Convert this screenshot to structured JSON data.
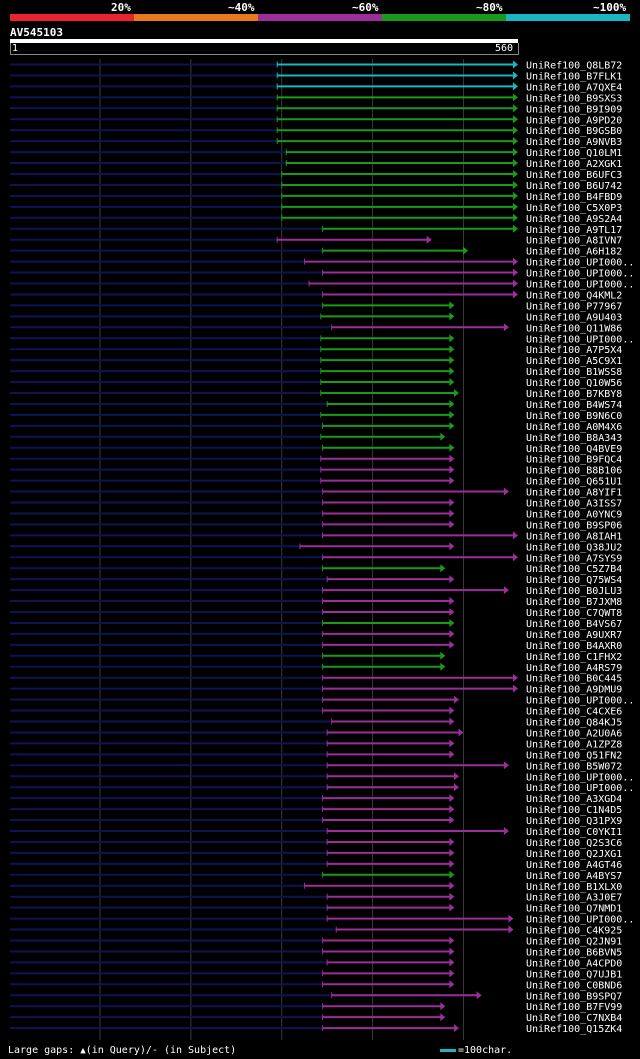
{
  "query": {
    "name": "AV545103",
    "start": "1",
    "end": "560",
    "length": 560
  },
  "legend": [
    {
      "label": "20%",
      "color": "#e8242f"
    },
    {
      "label": "~40%",
      "color": "#e9781e"
    },
    {
      "label": "~60%",
      "color": "#9b2e99"
    },
    {
      "label": "~80%",
      "color": "#1a9a1a"
    },
    {
      "label": "~100%",
      "color": "#19b5c1"
    }
  ],
  "footer": {
    "gaps_prefix": "Large gaps:",
    "gaps_text": "(in Query)/- (in Subject)",
    "scale_text": "=100char."
  },
  "chart_data": {
    "type": "bar",
    "x_range": [
      1,
      560
    ],
    "grid": true,
    "hits": [
      {
        "name": "UniRef100_Q8LB72",
        "start": 295,
        "end": 560,
        "cls": 4
      },
      {
        "name": "UniRef100_B7FLK1",
        "start": 295,
        "end": 560,
        "cls": 4
      },
      {
        "name": "UniRef100_A7QXE4",
        "start": 295,
        "end": 560,
        "cls": 4
      },
      {
        "name": "UniRef100_B9SXS3",
        "start": 295,
        "end": 560,
        "cls": 3
      },
      {
        "name": "UniRef100_B9I909",
        "start": 295,
        "end": 560,
        "cls": 3
      },
      {
        "name": "UniRef100_A9PD20",
        "start": 295,
        "end": 560,
        "cls": 3
      },
      {
        "name": "UniRef100_B9GSB0",
        "start": 295,
        "end": 560,
        "cls": 3
      },
      {
        "name": "UniRef100_A9NVB3",
        "start": 295,
        "end": 560,
        "cls": 3
      },
      {
        "name": "UniRef100_Q10LM1",
        "start": 305,
        "end": 560,
        "cls": 3
      },
      {
        "name": "UniRef100_A2XGK1",
        "start": 305,
        "end": 560,
        "cls": 3
      },
      {
        "name": "UniRef100_B6UFC3",
        "start": 300,
        "end": 560,
        "cls": 3
      },
      {
        "name": "UniRef100_B6U742",
        "start": 300,
        "end": 560,
        "cls": 3
      },
      {
        "name": "UniRef100_B4FBD9",
        "start": 300,
        "end": 560,
        "cls": 3
      },
      {
        "name": "UniRef100_C5X0P3",
        "start": 300,
        "end": 560,
        "cls": 3
      },
      {
        "name": "UniRef100_A9S2A4",
        "start": 300,
        "end": 560,
        "cls": 3
      },
      {
        "name": "UniRef100_A9TL17",
        "start": 345,
        "end": 560,
        "cls": 3
      },
      {
        "name": "UniRef100_A8IVN7",
        "start": 295,
        "end": 465,
        "cls": 2
      },
      {
        "name": "UniRef100_A6H182",
        "start": 345,
        "end": 505,
        "cls": 3
      },
      {
        "name": "UniRef100_UPI000..",
        "start": 325,
        "end": 560,
        "cls": 2
      },
      {
        "name": "UniRef100_UPI000..",
        "start": 345,
        "end": 560,
        "cls": 2
      },
      {
        "name": "UniRef100_UPI000..",
        "start": 330,
        "end": 560,
        "cls": 2
      },
      {
        "name": "UniRef100_Q4KML2",
        "start": 345,
        "end": 560,
        "cls": 2
      },
      {
        "name": "UniRef100_P77967",
        "start": 345,
        "end": 490,
        "cls": 3
      },
      {
        "name": "UniRef100_A9U403",
        "start": 343,
        "end": 490,
        "cls": 3
      },
      {
        "name": "UniRef100_Q11W86",
        "start": 355,
        "end": 550,
        "cls": 2
      },
      {
        "name": "UniRef100_UPI000..",
        "start": 343,
        "end": 490,
        "cls": 3
      },
      {
        "name": "UniRef100_A7P5X4",
        "start": 343,
        "end": 490,
        "cls": 3
      },
      {
        "name": "UniRef100_A5C9X1",
        "start": 343,
        "end": 490,
        "cls": 3
      },
      {
        "name": "UniRef100_B1WSS8",
        "start": 343,
        "end": 490,
        "cls": 3
      },
      {
        "name": "UniRef100_Q10W56",
        "start": 343,
        "end": 490,
        "cls": 3
      },
      {
        "name": "UniRef100_B7KBY8",
        "start": 343,
        "end": 495,
        "cls": 3
      },
      {
        "name": "UniRef100_B4WS74",
        "start": 350,
        "end": 490,
        "cls": 3
      },
      {
        "name": "UniRef100_B9N6C0",
        "start": 343,
        "end": 490,
        "cls": 3
      },
      {
        "name": "UniRef100_A0M4X6",
        "start": 345,
        "end": 490,
        "cls": 3
      },
      {
        "name": "UniRef100_B8A343",
        "start": 343,
        "end": 480,
        "cls": 3
      },
      {
        "name": "UniRef100_Q4BVE9",
        "start": 345,
        "end": 490,
        "cls": 3
      },
      {
        "name": "UniRef100_B9FQC4",
        "start": 343,
        "end": 490,
        "cls": 2
      },
      {
        "name": "UniRef100_B8B106",
        "start": 343,
        "end": 490,
        "cls": 2
      },
      {
        "name": "UniRef100_Q651U1",
        "start": 343,
        "end": 490,
        "cls": 2
      },
      {
        "name": "UniRef100_A8YIF1",
        "start": 345,
        "end": 550,
        "cls": 2
      },
      {
        "name": "UniRef100_A3ISS7",
        "start": 345,
        "end": 490,
        "cls": 2
      },
      {
        "name": "UniRef100_A0YNC9",
        "start": 345,
        "end": 490,
        "cls": 2
      },
      {
        "name": "UniRef100_B9SP06",
        "start": 345,
        "end": 490,
        "cls": 2
      },
      {
        "name": "UniRef100_A8IAH1",
        "start": 345,
        "end": 560,
        "cls": 2
      },
      {
        "name": "UniRef100_Q38JU2",
        "start": 320,
        "end": 490,
        "cls": 2
      },
      {
        "name": "UniRef100_A7SYS9",
        "start": 345,
        "end": 560,
        "cls": 2
      },
      {
        "name": "UniRef100_C5Z7B4",
        "start": 345,
        "end": 480,
        "cls": 3
      },
      {
        "name": "UniRef100_Q75WS4",
        "start": 350,
        "end": 490,
        "cls": 2
      },
      {
        "name": "UniRef100_B0JLU3",
        "start": 345,
        "end": 550,
        "cls": 2
      },
      {
        "name": "UniRef100_B7JXM8",
        "start": 345,
        "end": 490,
        "cls": 2
      },
      {
        "name": "UniRef100_C7QWT8",
        "start": 345,
        "end": 490,
        "cls": 2
      },
      {
        "name": "UniRef100_B4VS67",
        "start": 345,
        "end": 490,
        "cls": 3
      },
      {
        "name": "UniRef100_A9UXR7",
        "start": 345,
        "end": 490,
        "cls": 2
      },
      {
        "name": "UniRef100_B4AXR0",
        "start": 345,
        "end": 490,
        "cls": 2
      },
      {
        "name": "UniRef100_C1FHX2",
        "start": 345,
        "end": 480,
        "cls": 3
      },
      {
        "name": "UniRef100_A4RS79",
        "start": 345,
        "end": 480,
        "cls": 3
      },
      {
        "name": "UniRef100_B0C445",
        "start": 345,
        "end": 560,
        "cls": 2
      },
      {
        "name": "UniRef100_A9DMU9",
        "start": 345,
        "end": 560,
        "cls": 2
      },
      {
        "name": "UniRef100_UPI000..",
        "start": 345,
        "end": 495,
        "cls": 2
      },
      {
        "name": "UniRef100_C4CXE6",
        "start": 345,
        "end": 490,
        "cls": 2
      },
      {
        "name": "UniRef100_Q84KJ5",
        "start": 355,
        "end": 490,
        "cls": 2
      },
      {
        "name": "UniRef100_A2U0A6",
        "start": 350,
        "end": 500,
        "cls": 2
      },
      {
        "name": "UniRef100_A1ZPZ8",
        "start": 350,
        "end": 490,
        "cls": 2
      },
      {
        "name": "UniRef100_Q51FN2",
        "start": 350,
        "end": 490,
        "cls": 2
      },
      {
        "name": "UniRef100_B5W072",
        "start": 350,
        "end": 550,
        "cls": 2
      },
      {
        "name": "UniRef100_UPI000..",
        "start": 350,
        "end": 495,
        "cls": 2
      },
      {
        "name": "UniRef100_UPI000..",
        "start": 350,
        "end": 495,
        "cls": 2
      },
      {
        "name": "UniRef100_A3XGD4",
        "start": 345,
        "end": 490,
        "cls": 2
      },
      {
        "name": "UniRef100_C1N4D5",
        "start": 345,
        "end": 490,
        "cls": 2
      },
      {
        "name": "UniRef100_Q31PX9",
        "start": 345,
        "end": 490,
        "cls": 2
      },
      {
        "name": "UniRef100_C0YKI1",
        "start": 350,
        "end": 550,
        "cls": 2
      },
      {
        "name": "UniRef100_Q2S3C6",
        "start": 350,
        "end": 490,
        "cls": 2
      },
      {
        "name": "UniRef100_Q2JXG1",
        "start": 350,
        "end": 490,
        "cls": 2
      },
      {
        "name": "UniRef100_A4GT46",
        "start": 350,
        "end": 490,
        "cls": 2
      },
      {
        "name": "UniRef100_A4BYS7",
        "start": 345,
        "end": 490,
        "cls": 3
      },
      {
        "name": "UniRef100_B1XLX0",
        "start": 325,
        "end": 490,
        "cls": 2
      },
      {
        "name": "UniRef100_A3J0E7",
        "start": 350,
        "end": 490,
        "cls": 2
      },
      {
        "name": "UniRef100_Q7NMD1",
        "start": 350,
        "end": 490,
        "cls": 2
      },
      {
        "name": "UniRef100_UPI000..",
        "start": 350,
        "end": 555,
        "cls": 2
      },
      {
        "name": "UniRef100_C4K925",
        "start": 360,
        "end": 555,
        "cls": 2
      },
      {
        "name": "UniRef100_Q2JN91",
        "start": 345,
        "end": 490,
        "cls": 2
      },
      {
        "name": "UniRef100_B6BVN5",
        "start": 345,
        "end": 490,
        "cls": 2
      },
      {
        "name": "UniRef100_A4CPD0",
        "start": 350,
        "end": 490,
        "cls": 2
      },
      {
        "name": "UniRef100_Q7UJB1",
        "start": 345,
        "end": 490,
        "cls": 2
      },
      {
        "name": "UniRef100_C0BND6",
        "start": 345,
        "end": 490,
        "cls": 2
      },
      {
        "name": "UniRef100_B9SPQ7",
        "start": 355,
        "end": 520,
        "cls": 2
      },
      {
        "name": "UniRef100_B7FV99",
        "start": 345,
        "end": 480,
        "cls": 2
      },
      {
        "name": "UniRef100_C7NXB4",
        "start": 345,
        "end": 480,
        "cls": 2
      },
      {
        "name": "UniRef100_Q15ZK4",
        "start": 345,
        "end": 495,
        "cls": 2
      }
    ]
  }
}
